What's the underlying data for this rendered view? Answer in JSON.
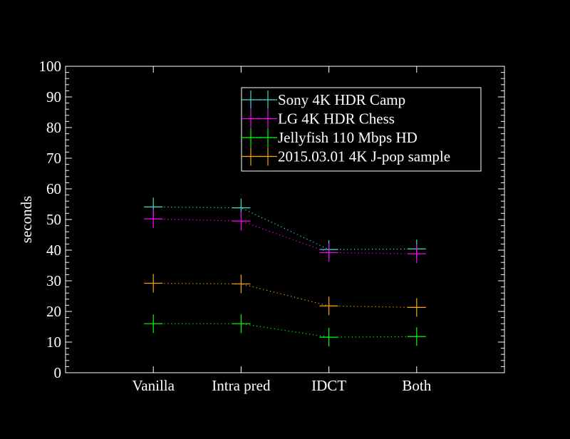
{
  "chart_data": {
    "type": "line",
    "title": "",
    "xlabel": "",
    "ylabel": "seconds",
    "categories": [
      "Vanilla",
      "Intra pred",
      "IDCT",
      "Both"
    ],
    "ylim": [
      0,
      100
    ],
    "yticks": [
      0,
      10,
      20,
      30,
      40,
      50,
      60,
      70,
      80,
      90,
      100
    ],
    "grid": false,
    "legend_position": "top-right",
    "background": "#000000",
    "series": [
      {
        "name": "Sony 4K HDR Camp",
        "color": "#40e0d0",
        "values": [
          54.1,
          53.8,
          40.2,
          40.4
        ]
      },
      {
        "name": "LG 4K HDR Chess",
        "color": "#ff00ff",
        "values": [
          50.2,
          49.5,
          39.2,
          38.8
        ]
      },
      {
        "name": "Jellyfish 110 Mbps HD",
        "color": "#00ff00",
        "values": [
          16.0,
          16.0,
          11.6,
          11.8
        ]
      },
      {
        "name": "2015.03.01 4K J-pop sample",
        "color": "#ffa500",
        "values": [
          29.2,
          29.0,
          21.8,
          21.3
        ]
      }
    ]
  }
}
